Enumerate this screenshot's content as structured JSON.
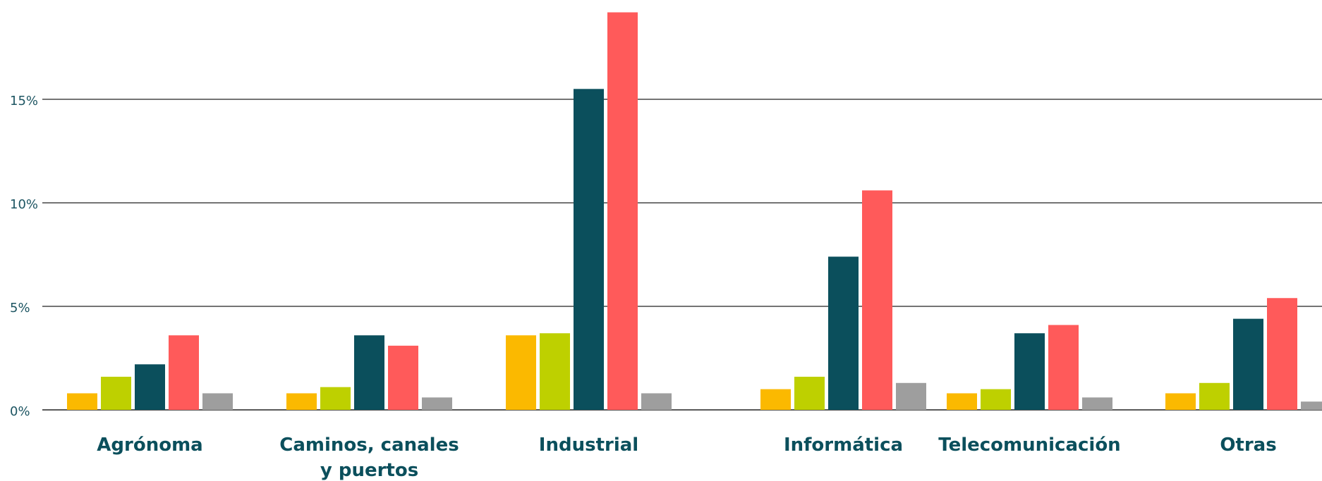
{
  "chart_data": {
    "type": "bar",
    "title": "",
    "xlabel": "",
    "ylabel": "",
    "categories": [
      [
        "Agrónoma"
      ],
      [
        "Caminos, canales",
        "y puertos"
      ],
      [
        "Industrial"
      ],
      [
        "Informática"
      ],
      [
        "Telecomunicación"
      ],
      [
        "Otras"
      ]
    ],
    "y_ticks": [
      {
        "value": 0,
        "label": "0%"
      },
      {
        "value": 5,
        "label": "5%"
      },
      {
        "value": 10,
        "label": "10%"
      },
      {
        "value": 15,
        "label": "15%"
      }
    ],
    "ylim": [
      0,
      19.2
    ],
    "grid": true,
    "legend": "none",
    "series": [
      {
        "color": "#fbb900",
        "values": [
          0.8,
          0.8,
          3.6,
          1.0,
          0.8,
          0.8
        ]
      },
      {
        "color": "#bed000",
        "values": [
          1.6,
          1.1,
          3.7,
          1.6,
          1.0,
          1.3
        ]
      },
      {
        "color": "#0b4f5c",
        "values": [
          2.2,
          3.6,
          15.5,
          7.4,
          3.7,
          4.4
        ]
      },
      {
        "color": "#ff5a5a",
        "values": [
          3.6,
          3.1,
          19.2,
          10.6,
          4.1,
          5.4
        ]
      },
      {
        "color": "#9e9e9e",
        "values": [
          0.8,
          0.6,
          0.8,
          1.3,
          0.6,
          0.4
        ]
      }
    ]
  }
}
